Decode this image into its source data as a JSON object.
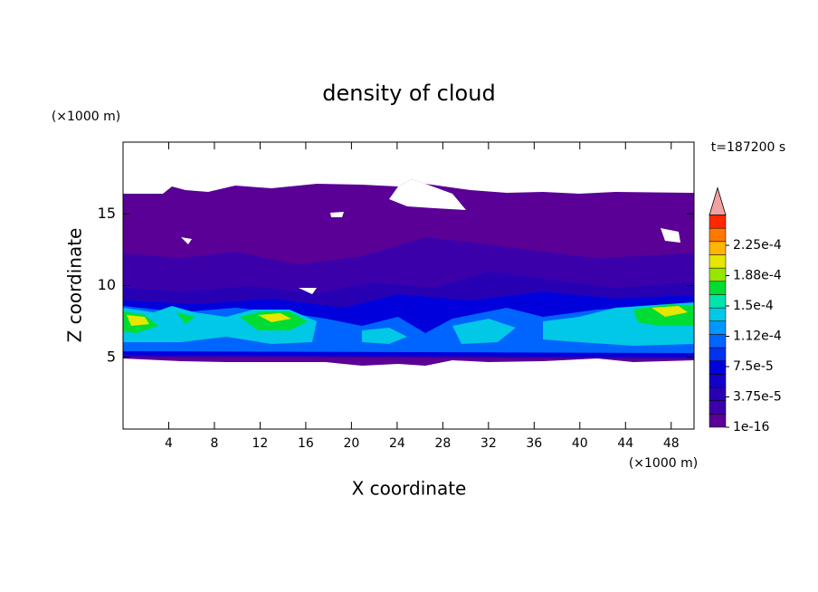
{
  "chart_data": {
    "type": "contour",
    "title": "density of cloud",
    "xlabel": "X coordinate",
    "ylabel": "Z coordinate",
    "xunit": "(×1000 m)",
    "yunit": "(×1000 m)",
    "annotation": "t=187200 s",
    "xlim": [
      0,
      50
    ],
    "xticks": [
      4,
      8,
      12,
      16,
      20,
      24,
      28,
      32,
      36,
      40,
      44,
      48
    ],
    "ylim": [
      0,
      20
    ],
    "yticks": [
      5,
      10,
      15
    ],
    "colorbar": {
      "range": [
        1e-16,
        0.0002625
      ],
      "ticks": [
        1e-16,
        {
          "value": 3.75e-05,
          "label": "3.75e-5"
        },
        {
          "value": 7.5e-05,
          "label": "7.5e-5"
        },
        {
          "value": 0.0001125,
          "label": "1.12e-4"
        },
        {
          "value": 0.00015,
          "label": "1.5e-4"
        },
        {
          "value": 0.0001875,
          "label": "1.88e-4"
        },
        {
          "value": 0.000225,
          "label": "2.25e-4"
        }
      ],
      "colors": [
        "#5a0096",
        "#3c00aa",
        "#2800b4",
        "#1400c8",
        "#0000dc",
        "#0032f0",
        "#0064ff",
        "#0096ff",
        "#00c8e6",
        "#00e6aa",
        "#00dc32",
        "#96e600",
        "#e6e600",
        "#ffb400",
        "#ff7800",
        "#ff2800"
      ],
      "extend_color": "#f4a0a0"
    }
  }
}
